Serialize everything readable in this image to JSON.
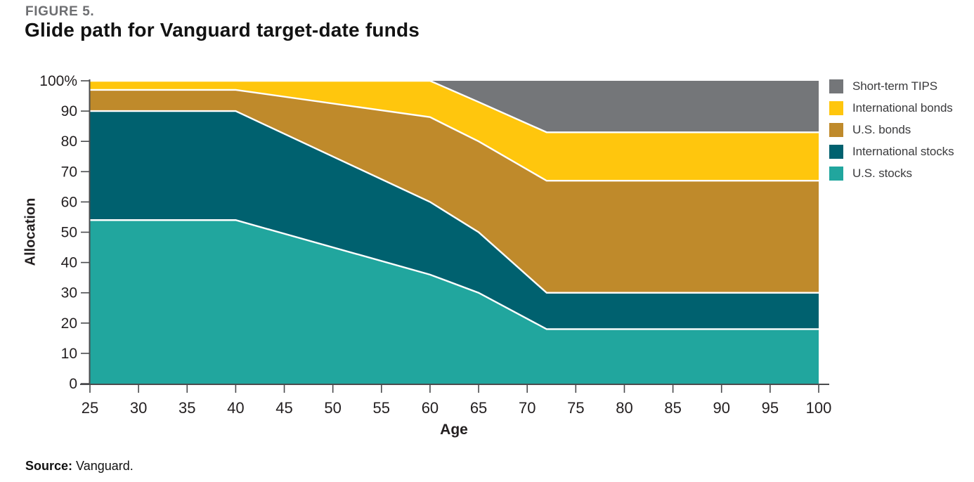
{
  "header": {
    "figure_label": "FIGURE 5.",
    "title": "Glide path for Vanguard target-date funds"
  },
  "source": {
    "label": "Source:",
    "text": " Vanguard."
  },
  "legend": {
    "items": [
      {
        "label": "Short-term TIPS",
        "color": "#747679"
      },
      {
        "label": "International bonds",
        "color": "#FFC60D"
      },
      {
        "label": "U.S. bonds",
        "color": "#BF8A2B"
      },
      {
        "label": "International stocks",
        "color": "#00616F"
      },
      {
        "label": "U.S. stocks",
        "color": "#21A69E"
      }
    ]
  },
  "chart_data": {
    "type": "area",
    "stacked": true,
    "title": "Glide path for Vanguard target-date funds",
    "xlabel": "Age",
    "ylabel": "Allocation",
    "x": [
      25,
      40,
      60,
      65,
      72,
      100
    ],
    "series": [
      {
        "name": "U.S. stocks",
        "color": "#21A69E",
        "values": [
          54,
          54,
          36,
          30,
          18,
          18
        ]
      },
      {
        "name": "International stocks",
        "color": "#00616F",
        "values": [
          36,
          36,
          24,
          20,
          12,
          12
        ]
      },
      {
        "name": "U.S. bonds",
        "color": "#BF8A2B",
        "values": [
          7,
          7,
          28,
          30,
          37,
          37
        ]
      },
      {
        "name": "International bonds",
        "color": "#FFC60D",
        "values": [
          3,
          3,
          12,
          13,
          16,
          16
        ]
      },
      {
        "name": "Short-term TIPS",
        "color": "#747679",
        "values": [
          0,
          0,
          0,
          7,
          17,
          17
        ]
      }
    ],
    "xlim": [
      25,
      100
    ],
    "ylim": [
      0,
      100
    ],
    "xticks": [
      25,
      30,
      35,
      40,
      45,
      50,
      55,
      60,
      65,
      70,
      75,
      80,
      85,
      90,
      95,
      100
    ],
    "yticks": [
      0,
      10,
      20,
      30,
      40,
      50,
      60,
      70,
      80,
      90,
      100
    ],
    "ytick_labels": [
      "0",
      "10",
      "20",
      "30",
      "40",
      "50",
      "60",
      "70",
      "80",
      "90",
      "100%"
    ],
    "grid": false,
    "legend_position": "right",
    "separator_color": "#FFFFFF",
    "axis_color": "#4A4B4D",
    "tick_text_color": "#231F20"
  }
}
